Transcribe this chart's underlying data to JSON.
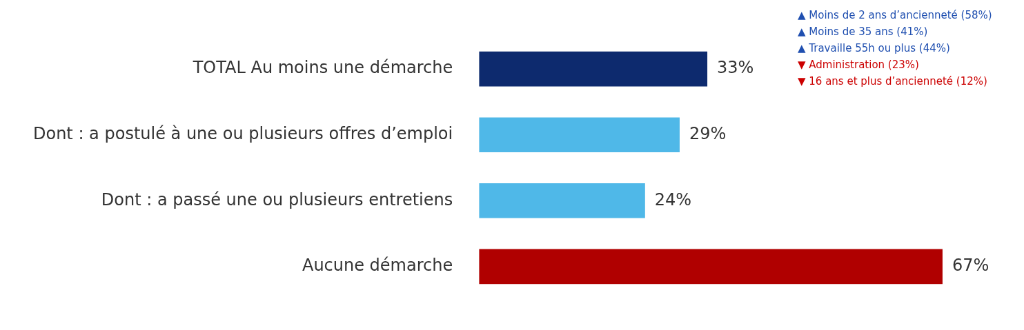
{
  "chart_data": {
    "type": "bar",
    "orientation": "horizontal",
    "categories": [
      "TOTAL Au moins une démarche",
      "Dont : a postulé à une ou plusieurs offres d’emploi",
      "Dont : a passé une ou plusieurs entretiens",
      "Aucune démarche"
    ],
    "values": [
      33,
      29,
      24,
      67
    ],
    "colors": [
      "#0d2a6e",
      "#4fb8e8",
      "#4fb8e8",
      "#b00000"
    ],
    "value_labels": [
      "33%",
      "29%",
      "24%",
      "67%"
    ],
    "tick_labels": "y",
    "annotations": [
      "▲ Moins de 2 ans d’ancienneté (58%)",
      "▲ Moins de 35 ans (41%)",
      "▲ Travaille 55h ou plus (44%)",
      "▼ Administration (23%)",
      "▼ 16 ans et plus d’ancienneté (12%)"
    ]
  }
}
